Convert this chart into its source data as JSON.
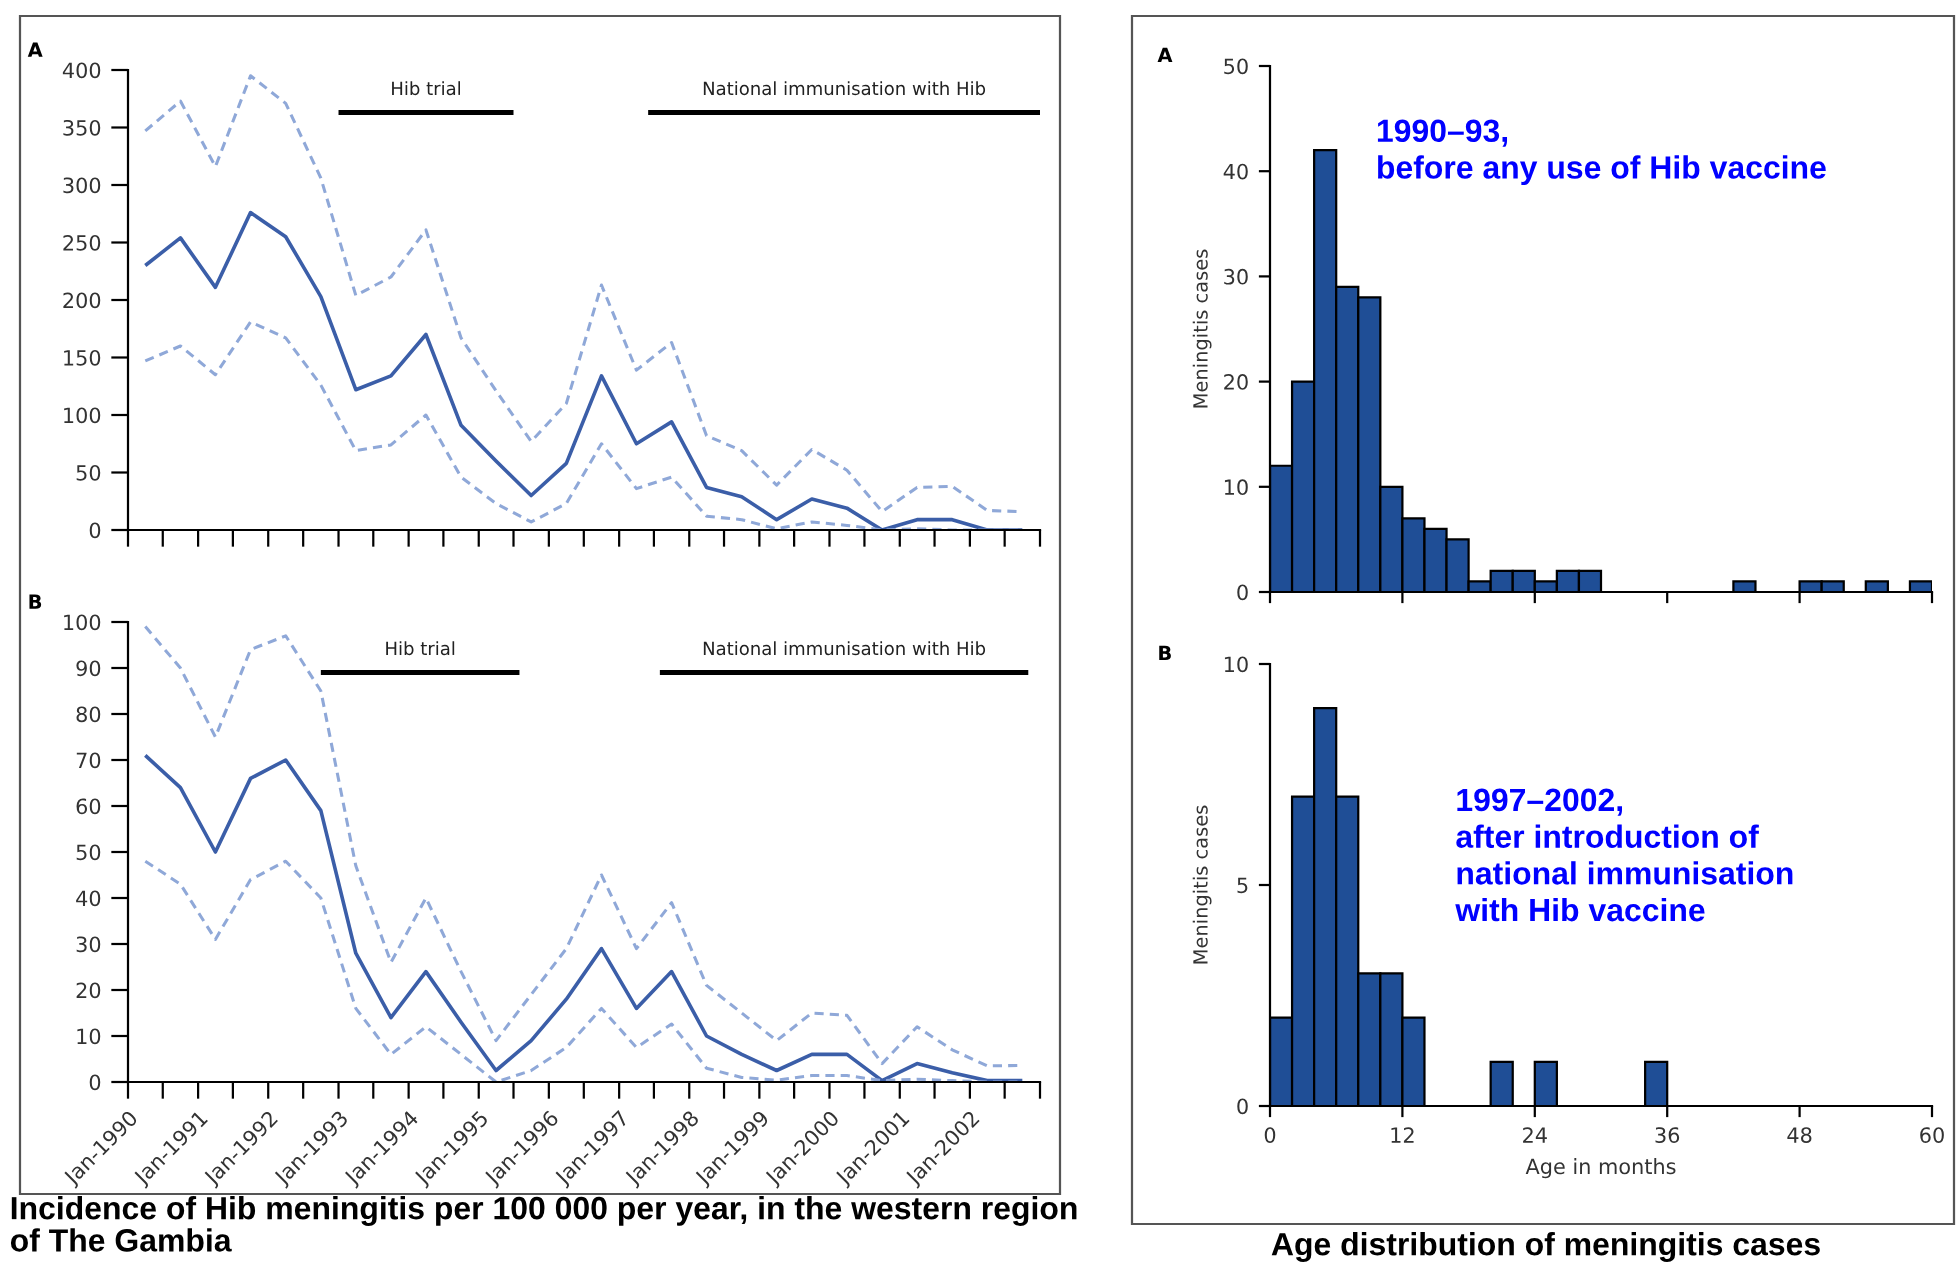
{
  "chart_data": [
    {
      "type": "line",
      "title": "A",
      "x": [
        "1990-04",
        "1990-10",
        "1991-04",
        "1991-10",
        "1992-04",
        "1992-10",
        "1993-04",
        "1993-10",
        "1994-04",
        "1994-10",
        "1995-04",
        "1995-10",
        "1996-04",
        "1996-10",
        "1997-04",
        "1997-10",
        "1998-04",
        "1998-10",
        "1999-04",
        "1999-10",
        "2000-04",
        "2000-10",
        "2001-04",
        "2001-10",
        "2002-04",
        "2002-10"
      ],
      "series": [
        {
          "color": "#8fa8d8",
          "line_style": "dashed",
          "values": [
            347,
            373,
            316,
            395,
            371,
            306,
            204,
            220,
            261,
            167,
            121,
            77,
            110,
            213,
            139,
            163,
            82,
            69,
            39,
            70,
            52,
            16,
            37,
            38,
            17,
            16
          ]
        },
        {
          "color": "#3b5ea8",
          "line_style": "solid",
          "values": [
            230,
            254,
            211,
            276,
            255,
            203,
            122,
            134,
            170,
            91,
            60,
            30,
            58,
            134,
            75,
            94,
            37,
            29,
            9,
            27,
            19,
            0,
            9,
            9,
            0,
            0
          ]
        },
        {
          "color": "#8fa8d8",
          "line_style": "dashed",
          "values": [
            147,
            160,
            135,
            181,
            167,
            126,
            69,
            74,
            100,
            46,
            23,
            7,
            23,
            75,
            36,
            46,
            12,
            9,
            1,
            7,
            4,
            0,
            1,
            0,
            0,
            0
          ]
        },
        {
          "name": "Hib trial",
          "color": "#000000",
          "line_style": "solid",
          "x": [
            "1993-01",
            "1995-07"
          ],
          "values": [
            363,
            363
          ]
        },
        {
          "name": "National immunisation with Hib",
          "color": "#000000",
          "line_style": "solid",
          "x": [
            "1997-06",
            "2003-01"
          ],
          "values": [
            363,
            363
          ]
        }
      ],
      "xlim": [
        "1990-01",
        "2003-01"
      ],
      "xticks": [
        {
          "value": "1990-01",
          "label": null
        },
        {
          "value": "1990-07",
          "label": null
        },
        {
          "value": "1991-01",
          "label": null
        },
        {
          "value": "1991-07",
          "label": null
        },
        {
          "value": "1992-01",
          "label": null
        },
        {
          "value": "1992-07",
          "label": null
        },
        {
          "value": "1993-01",
          "label": null
        },
        {
          "value": "1993-07",
          "label": null
        },
        {
          "value": "1994-01",
          "label": null
        },
        {
          "value": "1994-07",
          "label": null
        },
        {
          "value": "1995-01",
          "label": null
        },
        {
          "value": "1995-07",
          "label": null
        },
        {
          "value": "1996-01",
          "label": null
        },
        {
          "value": "1996-07",
          "label": null
        },
        {
          "value": "1997-01",
          "label": null
        },
        {
          "value": "1997-07",
          "label": null
        },
        {
          "value": "1998-01",
          "label": null
        },
        {
          "value": "1998-07",
          "label": null
        },
        {
          "value": "1999-01",
          "label": null
        },
        {
          "value": "1999-07",
          "label": null
        },
        {
          "value": "2000-01",
          "label": null
        },
        {
          "value": "2000-07",
          "label": null
        },
        {
          "value": "2001-01",
          "label": null
        },
        {
          "value": "2001-07",
          "label": null
        },
        {
          "value": "2002-01",
          "label": null
        },
        {
          "value": "2002-07",
          "label": null
        },
        {
          "value": "2003-01",
          "label": null
        }
      ],
      "ylim": [
        0,
        400
      ],
      "yticks": [
        0,
        50,
        100,
        150,
        200,
        250,
        300,
        350,
        400
      ],
      "tick_labels": "y"
    },
    {
      "type": "line",
      "title": "B",
      "x": [
        "1990-04",
        "1990-10",
        "1991-04",
        "1991-10",
        "1992-04",
        "1992-10",
        "1993-04",
        "1993-10",
        "1994-04",
        "1994-10",
        "1995-04",
        "1995-10",
        "1996-04",
        "1996-10",
        "1997-04",
        "1997-10",
        "1998-04",
        "1998-10",
        "1999-04",
        "1999-10",
        "2000-04",
        "2000-10",
        "2001-04",
        "2001-10",
        "2002-04",
        "2002-10"
      ],
      "series": [
        {
          "color": "#8fa8d8",
          "line_style": "dashed",
          "values": [
            99,
            90,
            75,
            94,
            97,
            85,
            47,
            26,
            40,
            24,
            9,
            19,
            29,
            45,
            29,
            39,
            21,
            15,
            9,
            15,
            14.5,
            4,
            12,
            7,
            3.5,
            3.6
          ]
        },
        {
          "color": "#3b5ea8",
          "line_style": "solid",
          "values": [
            71,
            64,
            50,
            66,
            70,
            59,
            28,
            14,
            24,
            13,
            2.5,
            9,
            18,
            29,
            16,
            24,
            10,
            6,
            2.5,
            6,
            6,
            0.3,
            4,
            2,
            0.3,
            0.3
          ]
        },
        {
          "color": "#8fa8d8",
          "line_style": "dashed",
          "values": [
            48,
            43,
            31,
            44,
            48,
            40,
            16,
            6,
            12,
            6,
            0,
            2.5,
            7.5,
            16,
            7.5,
            12.6,
            3,
            1,
            0.4,
            1.4,
            1.4,
            0.3,
            0.6,
            0.3,
            0,
            0
          ]
        },
        {
          "name": "Hib trial",
          "color": "#000000",
          "line_style": "solid",
          "x": [
            "1992-10",
            "1995-08"
          ],
          "values": [
            89,
            89
          ]
        },
        {
          "name": "National immunisation with Hib",
          "color": "#000000",
          "line_style": "solid",
          "x": [
            "1997-08",
            "2002-11"
          ],
          "values": [
            89,
            89
          ]
        }
      ],
      "xlim": [
        "1990-01",
        "2003-01"
      ],
      "xticks": [
        {
          "value": "1990-01",
          "label": "Jan-1990"
        },
        {
          "value": "1990-07",
          "label": null
        },
        {
          "value": "1991-01",
          "label": "Jan-1991"
        },
        {
          "value": "1991-07",
          "label": null
        },
        {
          "value": "1992-01",
          "label": "Jan-1992"
        },
        {
          "value": "1992-07",
          "label": null
        },
        {
          "value": "1993-01",
          "label": "Jan-1993"
        },
        {
          "value": "1993-07",
          "label": null
        },
        {
          "value": "1994-01",
          "label": "Jan-1994"
        },
        {
          "value": "1994-07",
          "label": null
        },
        {
          "value": "1995-01",
          "label": "Jan-1995"
        },
        {
          "value": "1995-07",
          "label": null
        },
        {
          "value": "1996-01",
          "label": "Jan-1996"
        },
        {
          "value": "1996-07",
          "label": null
        },
        {
          "value": "1997-01",
          "label": "Jan-1997"
        },
        {
          "value": "1997-07",
          "label": null
        },
        {
          "value": "1998-01",
          "label": "Jan-1998"
        },
        {
          "value": "1998-07",
          "label": null
        },
        {
          "value": "1999-01",
          "label": "Jan-1999"
        },
        {
          "value": "1999-07",
          "label": null
        },
        {
          "value": "2000-01",
          "label": "Jan-2000"
        },
        {
          "value": "2000-07",
          "label": null
        },
        {
          "value": "2001-01",
          "label": "Jan-2001"
        },
        {
          "value": "2001-07",
          "label": null
        },
        {
          "value": "2002-01",
          "label": "Jan-2002"
        },
        {
          "value": "2002-07",
          "label": null
        },
        {
          "value": "2003-01",
          "label": null
        }
      ],
      "ylim": [
        0,
        100
      ],
      "yticks": [
        0,
        10,
        20,
        30,
        40,
        50,
        60,
        70,
        80,
        90,
        100
      ],
      "annotations": [
        "Incidence of Hib meningitis per 100 000 per year, in the western region of The Gambia"
      ]
    },
    {
      "type": "histogram",
      "title": "A",
      "ylabel": "Meningitis cases",
      "color": "#1f4e96",
      "bins": [
        0,
        2,
        4,
        6,
        8,
        10,
        12,
        14,
        16,
        18,
        20,
        22,
        24,
        26,
        28,
        30,
        32,
        34,
        36,
        38,
        40,
        42,
        44,
        46,
        48,
        50,
        52,
        54,
        56,
        58,
        60
      ],
      "values": [
        12,
        20,
        42,
        29,
        28,
        10,
        7,
        6,
        5,
        1,
        2,
        2,
        1,
        2,
        2,
        0,
        0,
        0,
        0,
        0,
        0,
        1,
        0,
        0,
        1,
        1,
        0,
        1,
        0,
        1
      ],
      "xlim": [
        0,
        60
      ],
      "xticks": [
        {
          "value": 0,
          "label": null
        },
        {
          "value": 12,
          "label": null
        },
        {
          "value": 24,
          "label": null
        },
        {
          "value": 36,
          "label": null
        },
        {
          "value": 48,
          "label": null
        },
        {
          "value": 60,
          "label": null
        }
      ],
      "ylim": [
        0,
        50
      ],
      "yticks": [
        0,
        10,
        20,
        30,
        40,
        50
      ],
      "tick_labels": "y",
      "annotations": [
        "1990–93,\nbefore any use of Hib vaccine"
      ]
    },
    {
      "type": "histogram",
      "title": "B",
      "ylabel": "Meningitis cases",
      "xlabel": "Age in months",
      "color": "#1f4e96",
      "bins": [
        0,
        2,
        4,
        6,
        8,
        10,
        12,
        14,
        16,
        18,
        20,
        22,
        24,
        26,
        28,
        30,
        32,
        34,
        36,
        38,
        40,
        42,
        44,
        46,
        48,
        50,
        52,
        54,
        56,
        58,
        60
      ],
      "values": [
        2,
        7,
        9,
        7,
        3,
        3,
        2,
        0,
        0,
        0,
        1,
        0,
        1,
        0,
        0,
        0,
        0,
        1,
        0,
        0,
        0,
        0,
        0,
        0,
        0,
        0,
        0,
        0,
        0,
        0
      ],
      "xlim": [
        0,
        60
      ],
      "xticks": [
        0,
        12,
        24,
        36,
        48,
        60
      ],
      "ylim": [
        0,
        10
      ],
      "yticks": [
        0,
        5,
        10
      ],
      "annotations": [
        "1997–2002,\nafter introduction of\nnational immunisation\nwith Hib vaccine",
        "Age distribution of meningitis cases"
      ]
    }
  ]
}
